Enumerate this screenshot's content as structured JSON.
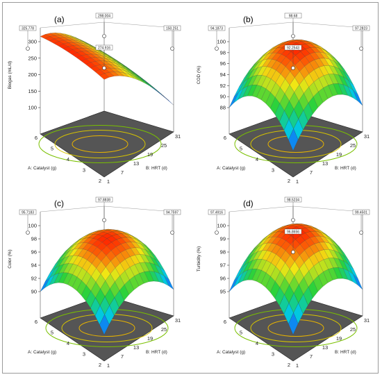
{
  "chart_data": [
    {
      "type": "surface",
      "panel_label": "(a)",
      "ylabel": "Biogas (mL/d)",
      "xlabel": "A: Catalyst  (g)",
      "zlabel": "B: HRT (d)",
      "z_ticks": [
        "100",
        "150",
        "200",
        "250",
        "300"
      ],
      "a_ticks": [
        "2",
        "3",
        "4",
        "5",
        "6"
      ],
      "b_ticks": [
        "1",
        "7",
        "13",
        "19",
        "25",
        "31"
      ],
      "data_labels": [
        "325.778",
        "298.004",
        "150.251",
        "274.916"
      ],
      "surface_low": 100,
      "surface_high": 325.778,
      "color_high": "#ff2a00",
      "color_low": "#1a2cff"
    },
    {
      "type": "surface",
      "panel_label": "(b)",
      "ylabel": "COD (%)",
      "xlabel": "A: Catalyst  (g)",
      "zlabel": "B: HRT (d)",
      "z_ticks": [
        "88",
        "90",
        "92",
        "94",
        "96",
        "98",
        "100"
      ],
      "a_ticks": [
        "2",
        "3",
        "4",
        "5",
        "6"
      ],
      "b_ticks": [
        "1",
        "7",
        "13",
        "19",
        "25",
        "31"
      ],
      "data_labels": [
        "94.1873",
        "98.68",
        "97.2823",
        "92.2543"
      ],
      "surface_low": 88,
      "surface_high": 98.68,
      "color_high": "#ff2a00",
      "color_low": "#1a8cff"
    },
    {
      "type": "surface",
      "panel_label": "(c)",
      "ylabel": "Color (%)",
      "xlabel": "A: Catalyst  (g)",
      "zlabel": "B: HRT (d)",
      "z_ticks": [
        "90",
        "92",
        "94",
        "96",
        "98",
        "100"
      ],
      "a_ticks": [
        "2",
        "3",
        "4",
        "5",
        "6"
      ],
      "b_ticks": [
        "1",
        "7",
        "13",
        "19",
        "25",
        "31"
      ],
      "data_labels": [
        "95.7183",
        "97.8838",
        "94.7597"
      ],
      "surface_low": 90,
      "surface_high": 97.8838,
      "color_high": "#ff2a00",
      "color_low": "#1a8cff"
    },
    {
      "type": "surface",
      "panel_label": "(d)",
      "ylabel": "Turbidity (%)",
      "xlabel": "A: Catalyst  (g)",
      "zlabel": "B: HRT (d)",
      "z_ticks": [
        "95",
        "96",
        "97",
        "98",
        "99",
        "100"
      ],
      "a_ticks": [
        "2",
        "3",
        "4",
        "5",
        "6"
      ],
      "b_ticks": [
        "1",
        "7",
        "13",
        "19",
        "25",
        "31"
      ],
      "data_labels": [
        "97.4916",
        "98.5234",
        "99.4501",
        "96.8656"
      ],
      "surface_low": 95,
      "surface_high": 99.4501,
      "color_high": "#ff2a00",
      "color_low": "#1a8cff"
    }
  ]
}
